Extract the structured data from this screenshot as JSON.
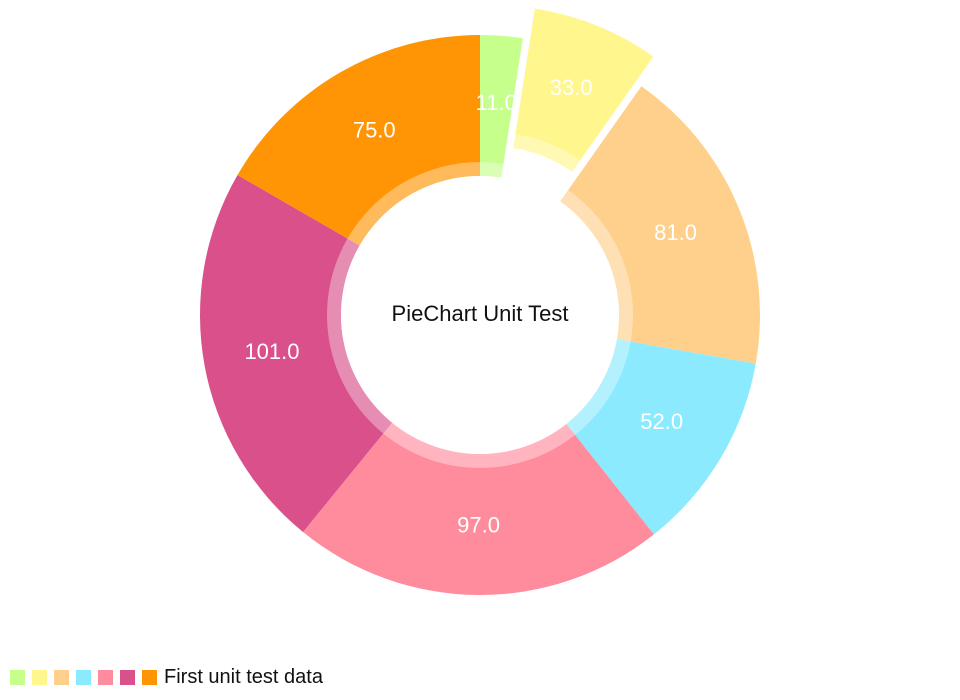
{
  "chart_data": {
    "type": "pie",
    "style": "donut",
    "center_text": "PieChart Unit Test",
    "series_name": "First unit test data",
    "slices": [
      {
        "value": 11.0,
        "label": "11.0",
        "color": "#C6FF8C"
      },
      {
        "value": 33.0,
        "label": "33.0",
        "color": "#FFF68D",
        "highlighted": true
      },
      {
        "value": 81.0,
        "label": "81.0",
        "color": "#FFD08C"
      },
      {
        "value": 52.0,
        "label": "52.0",
        "color": "#8CEAFF"
      },
      {
        "value": 97.0,
        "label": "97.0",
        "color": "#FF8C9D"
      },
      {
        "value": 101.0,
        "label": "101.0",
        "color": "#D9508A"
      },
      {
        "value": 75.0,
        "label": "75.0",
        "color": "#FF9505"
      }
    ],
    "legend_position": "bottom-left"
  }
}
